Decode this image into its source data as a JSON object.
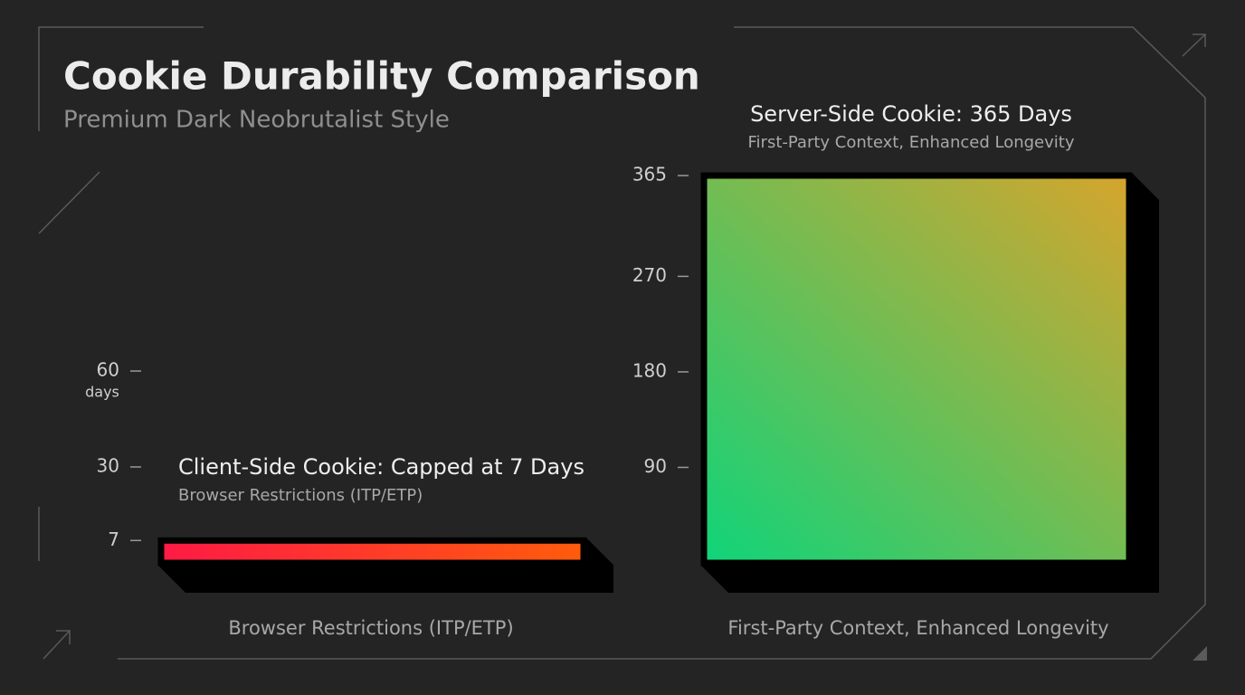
{
  "header": {
    "title": "Cookie Durability Comparison",
    "subtitle": "Premium Dark Neobrutalist Style"
  },
  "chart_data": [
    {
      "type": "bar",
      "title": "Client-Side Cookie: Capped at 7 Days",
      "subtitle": "Browser Restrictions (ITP/ETP)",
      "x_label": "Browser Restrictions (ITP/ETP)",
      "y_unit": "days",
      "values": [
        7
      ],
      "color": [
        "#ff1a45",
        "#ff5c0c"
      ],
      "ylim": [
        0,
        60
      ],
      "yticks": [
        7,
        30,
        60
      ]
    },
    {
      "type": "bar",
      "title": "Server-Side Cookie: 365 Days",
      "subtitle": "First-Party Context, Enhanced Longevity",
      "x_label": "First-Party Context, Enhanced Longevity",
      "values": [
        365
      ],
      "color": [
        "#0fd47a",
        "#d6a52c"
      ],
      "ylim": [
        0,
        365
      ],
      "yticks": [
        90,
        180,
        270,
        365
      ]
    }
  ]
}
